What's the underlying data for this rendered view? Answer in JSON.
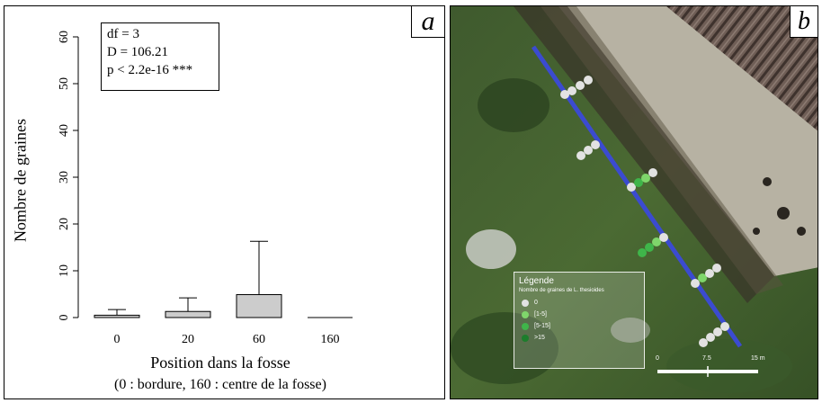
{
  "chart_data": {
    "type": "bar",
    "title": "",
    "xlabel": "Position dans la fosse",
    "xlabel_sub": "(0 : bordure, 160 : centre de la fosse)",
    "ylabel": "Nombre de graines",
    "categories": [
      "0",
      "20",
      "60",
      "160"
    ],
    "values": [
      0.5,
      1.3,
      4.9,
      0.0
    ],
    "error_upper": [
      1.7,
      4.2,
      16.3,
      0.0
    ],
    "ylim": [
      0,
      60
    ],
    "yticks": [
      "0",
      "10",
      "20",
      "30",
      "40",
      "50",
      "60"
    ],
    "bar_color": "#cccccc",
    "grid": false,
    "stats": [
      "df = 3",
      "D = 106.21",
      "p < 2.2e-16 ***"
    ]
  },
  "panel_a_label": "a",
  "panel_b_label": "b",
  "map": {
    "legend_title": "Légende",
    "legend_subtitle": "Nombre de graines de L. thesioides",
    "legend_items": [
      {
        "label": "0",
        "color": "#e2e2e2"
      },
      {
        "label": "[1-5]",
        "color": "#7fd66b"
      },
      {
        "label": "[5-15]",
        "color": "#3fb54a"
      },
      {
        "label": ">15",
        "color": "#1d7d2c"
      }
    ],
    "scale_labels": [
      "0",
      "7.5",
      "15 m"
    ],
    "transect_color": "#3b4bd0"
  }
}
